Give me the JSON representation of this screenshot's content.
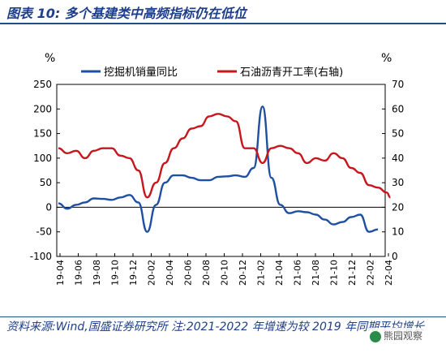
{
  "figure": {
    "title": "图表 10:  多个基建类中高频指标仍在低位",
    "source": "资料来源:Wind,国盛证券研究所  注:2021-2022 年增速为较 2019 年同期平均增长",
    "watermark": "熊园观察"
  },
  "chart_data": {
    "type": "line",
    "left_unit": "%",
    "right_unit": "%",
    "y_left": {
      "min": -100,
      "max": 250,
      "ticks": [
        250,
        200,
        150,
        100,
        50,
        0,
        -50,
        -100
      ]
    },
    "y_right": {
      "min": 0,
      "max": 70,
      "ticks": [
        70,
        60,
        50,
        40,
        30,
        20,
        10,
        0
      ]
    },
    "x_ticks": [
      "19-04",
      "19-06",
      "19-08",
      "19-10",
      "19-12",
      "20-02",
      "20-04",
      "20-06",
      "20-08",
      "20-10",
      "20-12",
      "21-02",
      "21-04",
      "21-06",
      "21-08",
      "21-10",
      "21-12",
      "22-02",
      "22-04"
    ],
    "x_range": [
      0,
      37
    ],
    "series": [
      {
        "name": "挖掘机销量同比",
        "axis": "left",
        "color": "#1f4fa0",
        "points": [
          [
            0,
            8
          ],
          [
            1,
            -3
          ],
          [
            2,
            5
          ],
          [
            3,
            10
          ],
          [
            4,
            18
          ],
          [
            5,
            17
          ],
          [
            6,
            15
          ],
          [
            7,
            20
          ],
          [
            8,
            25
          ],
          [
            9,
            10
          ],
          [
            10,
            -50
          ],
          [
            11,
            5
          ],
          [
            12,
            50
          ],
          [
            13,
            65
          ],
          [
            14,
            65
          ],
          [
            15,
            60
          ],
          [
            16,
            55
          ],
          [
            17,
            55
          ],
          [
            18,
            62
          ],
          [
            19,
            63
          ],
          [
            20,
            65
          ],
          [
            21,
            62
          ],
          [
            22,
            80
          ],
          [
            23,
            205
          ],
          [
            24,
            60
          ],
          [
            25,
            5
          ],
          [
            26,
            -12
          ],
          [
            27,
            -8
          ],
          [
            28,
            -10
          ],
          [
            29,
            -15
          ],
          [
            30,
            -25
          ],
          [
            31,
            -35
          ],
          [
            32,
            -30
          ],
          [
            33,
            -20
          ],
          [
            34,
            -15
          ],
          [
            35,
            -50
          ],
          [
            36,
            -45
          ]
        ]
      },
      {
        "name": "石油沥青开工率(右轴)",
        "axis": "right",
        "color": "#c8161d",
        "points": [
          [
            0,
            44
          ],
          [
            1,
            42
          ],
          [
            2,
            43
          ],
          [
            3,
            40
          ],
          [
            4,
            43
          ],
          [
            5,
            44
          ],
          [
            6,
            44
          ],
          [
            7,
            41
          ],
          [
            8,
            40
          ],
          [
            9,
            35
          ],
          [
            10,
            24
          ],
          [
            11,
            30
          ],
          [
            12,
            38
          ],
          [
            13,
            44
          ],
          [
            14,
            48
          ],
          [
            15,
            52
          ],
          [
            16,
            53
          ],
          [
            17,
            57
          ],
          [
            18,
            58
          ],
          [
            19,
            57
          ],
          [
            20,
            55
          ],
          [
            21,
            44
          ],
          [
            22,
            44
          ],
          [
            23,
            38
          ],
          [
            24,
            44
          ],
          [
            25,
            45
          ],
          [
            26,
            44
          ],
          [
            27,
            42
          ],
          [
            28,
            38
          ],
          [
            29,
            40
          ],
          [
            30,
            39
          ],
          [
            31,
            42
          ],
          [
            32,
            40
          ],
          [
            33,
            36
          ],
          [
            34,
            34
          ],
          [
            35,
            29
          ],
          [
            36,
            28
          ],
          [
            37,
            26
          ],
          [
            37.4,
            24
          ]
        ]
      }
    ]
  }
}
